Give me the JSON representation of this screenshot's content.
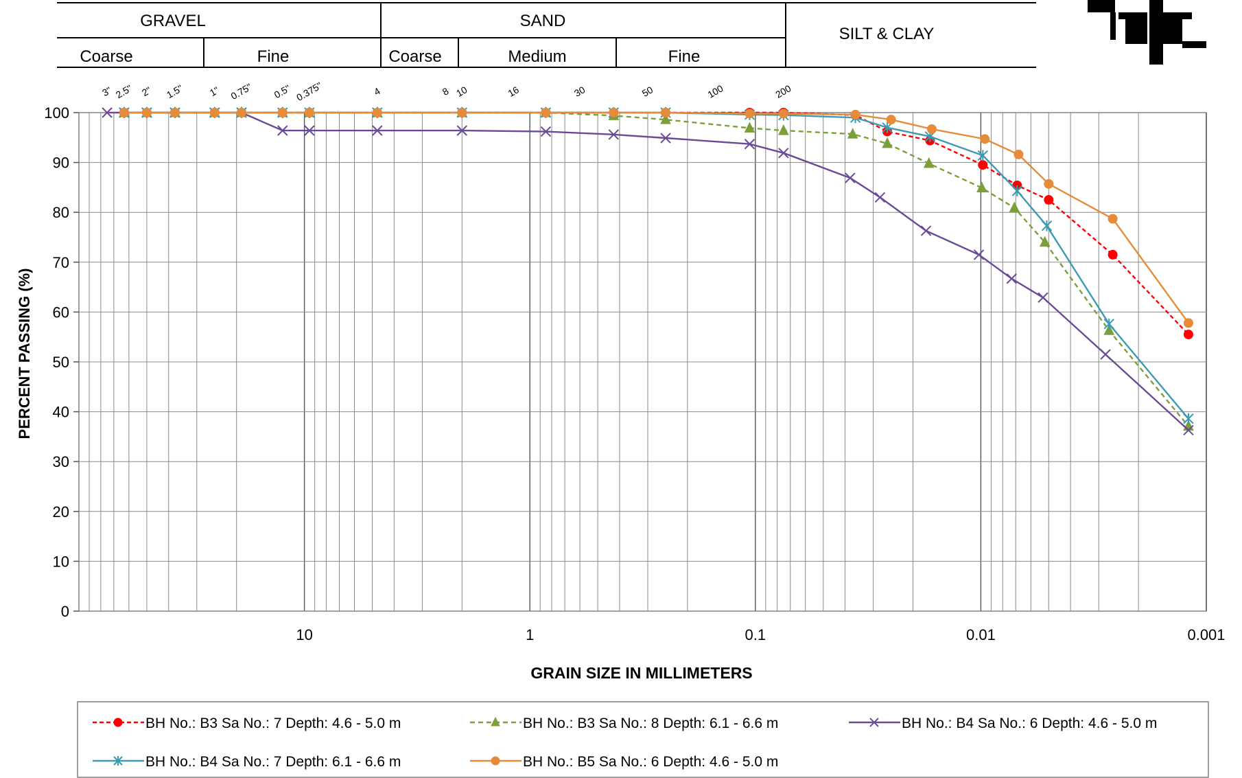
{
  "classification": {
    "gravel": "GRAVEL",
    "sand": "SAND",
    "silt_clay": "SILT & CLAY",
    "coarse_gravel": "Coarse",
    "fine_gravel": "Fine",
    "coarse_sand": "Coarse",
    "medium_sand": "Medium",
    "fine_sand": "Fine"
  },
  "sieves": [
    {
      "label": "3\"",
      "size": 75
    },
    {
      "label": "2.5\"",
      "size": 63
    },
    {
      "label": "2\"",
      "size": 50
    },
    {
      "label": "1.5\"",
      "size": 37.5
    },
    {
      "label": "1\"",
      "size": 25
    },
    {
      "label": "0.75\"",
      "size": 19
    },
    {
      "label": "0.5\"",
      "size": 12.5
    },
    {
      "label": "0.375\"",
      "size": 9.5
    },
    {
      "label": "4",
      "size": 4.75
    },
    {
      "label": "8",
      "size": 2.36
    },
    {
      "label": "10",
      "size": 2.0
    },
    {
      "label": "16",
      "size": 1.18
    },
    {
      "label": "30",
      "size": 0.6
    },
    {
      "label": "50",
      "size": 0.3
    },
    {
      "label": "100",
      "size": 0.15
    },
    {
      "label": "200",
      "size": 0.075
    }
  ],
  "chart_data": {
    "type": "line",
    "xlabel": "GRAIN SIZE IN MILLIMETERS",
    "ylabel": "PERCENT PASSING (%)",
    "x_scale": "log-reversed",
    "xlim": [
      100,
      0.001
    ],
    "ylim": [
      0,
      100
    ],
    "x_ticks": [
      {
        "v": 10,
        "label": "10"
      },
      {
        "v": 1,
        "label": "1"
      },
      {
        "v": 0.1,
        "label": "0.1"
      },
      {
        "v": 0.01,
        "label": "0.01"
      },
      {
        "v": 0.001,
        "label": "0.001"
      }
    ],
    "y_ticks": [
      0,
      10,
      20,
      30,
      40,
      50,
      60,
      70,
      80,
      90,
      100
    ],
    "grid": true,
    "legend_position": "bottom",
    "series": [
      {
        "name": "BH No.: B3 Sa No.: 7 Depth: 4.6 - 5.0 m",
        "color": "#ff0000",
        "dash": "6,4",
        "marker": "circle",
        "points": [
          [
            63,
            100
          ],
          [
            50,
            100
          ],
          [
            37.5,
            100
          ],
          [
            25,
            100
          ],
          [
            19,
            100
          ],
          [
            12.5,
            100
          ],
          [
            9.5,
            100
          ],
          [
            4.75,
            100
          ],
          [
            2.0,
            100
          ],
          [
            0.85,
            100
          ],
          [
            0.425,
            100
          ],
          [
            0.25,
            100
          ],
          [
            0.106,
            100
          ],
          [
            0.075,
            100
          ],
          [
            0.036,
            99.5
          ],
          [
            0.026,
            96.2
          ],
          [
            0.0168,
            94.4
          ],
          [
            0.0098,
            89.5
          ],
          [
            0.0069,
            85.4
          ],
          [
            0.005,
            82.5
          ],
          [
            0.0026,
            71.5
          ],
          [
            0.0012,
            55.5
          ]
        ]
      },
      {
        "name": "BH No.: B3 Sa No.: 8 Depth: 6.1 - 6.6 m",
        "color": "#7ba03b",
        "dash": "7,5",
        "marker": "triangle",
        "points": [
          [
            63,
            100
          ],
          [
            50,
            100
          ],
          [
            37.5,
            100
          ],
          [
            25,
            100
          ],
          [
            19,
            100
          ],
          [
            12.5,
            100
          ],
          [
            9.5,
            100
          ],
          [
            4.75,
            100
          ],
          [
            2.0,
            100
          ],
          [
            0.85,
            100
          ],
          [
            0.425,
            99.4
          ],
          [
            0.25,
            98.6
          ],
          [
            0.106,
            96.9
          ],
          [
            0.075,
            96.4
          ],
          [
            0.037,
            95.7
          ],
          [
            0.026,
            93.8
          ],
          [
            0.017,
            89.8
          ],
          [
            0.0099,
            84.9
          ],
          [
            0.0071,
            80.9
          ],
          [
            0.0052,
            74.0
          ],
          [
            0.0027,
            56.3
          ],
          [
            0.0012,
            37.1
          ]
        ]
      },
      {
        "name": "BH No.: B4 Sa No.: 6 Depth: 4.6 - 5.0 m",
        "color": "#6a4a96",
        "dash": "",
        "marker": "x",
        "points": [
          [
            75,
            100
          ],
          [
            63,
            100
          ],
          [
            50,
            100
          ],
          [
            37.5,
            100
          ],
          [
            25,
            100
          ],
          [
            19,
            100
          ],
          [
            12.5,
            96.4
          ],
          [
            9.5,
            96.4
          ],
          [
            4.75,
            96.4
          ],
          [
            2.0,
            96.4
          ],
          [
            0.85,
            96.2
          ],
          [
            0.425,
            95.6
          ],
          [
            0.25,
            94.9
          ],
          [
            0.106,
            93.7
          ],
          [
            0.075,
            91.9
          ],
          [
            0.038,
            86.9
          ],
          [
            0.028,
            83.0
          ],
          [
            0.0175,
            76.3
          ],
          [
            0.0102,
            71.5
          ],
          [
            0.0073,
            66.7
          ],
          [
            0.0053,
            62.9
          ],
          [
            0.0028,
            51.5
          ],
          [
            0.0012,
            36.3
          ]
        ]
      },
      {
        "name": "BH No.: B4 Sa No.: 7 Depth: 6.1 - 6.6 m",
        "color": "#3c9ab1",
        "dash": "",
        "marker": "star",
        "points": [
          [
            63,
            100
          ],
          [
            50,
            100
          ],
          [
            37.5,
            100
          ],
          [
            25,
            100
          ],
          [
            19,
            100
          ],
          [
            12.5,
            100
          ],
          [
            9.5,
            100
          ],
          [
            4.75,
            100
          ],
          [
            2.0,
            100
          ],
          [
            0.85,
            100
          ],
          [
            0.425,
            100
          ],
          [
            0.25,
            100
          ],
          [
            0.106,
            99.6
          ],
          [
            0.075,
            99.5
          ],
          [
            0.036,
            99.0
          ],
          [
            0.026,
            97.0
          ],
          [
            0.0168,
            95.2
          ],
          [
            0.0098,
            91.4
          ],
          [
            0.0069,
            84.3
          ],
          [
            0.0051,
            77.3
          ],
          [
            0.0027,
            57.6
          ],
          [
            0.0012,
            38.6
          ]
        ]
      },
      {
        "name": "BH No.: B5 Sa No.: 6 Depth: 4.6 - 5.0 m",
        "color": "#e58b3a",
        "dash": "",
        "marker": "circle",
        "points": [
          [
            63,
            100
          ],
          [
            50,
            100
          ],
          [
            37.5,
            100
          ],
          [
            25,
            100
          ],
          [
            19,
            100
          ],
          [
            12.5,
            100
          ],
          [
            9.5,
            100
          ],
          [
            4.75,
            100
          ],
          [
            2.0,
            100
          ],
          [
            0.85,
            100
          ],
          [
            0.425,
            100
          ],
          [
            0.25,
            100
          ],
          [
            0.106,
            99.8
          ],
          [
            0.075,
            99.8
          ],
          [
            0.036,
            99.6
          ],
          [
            0.025,
            98.6
          ],
          [
            0.0165,
            96.7
          ],
          [
            0.0096,
            94.7
          ],
          [
            0.0068,
            91.6
          ],
          [
            0.005,
            85.7
          ],
          [
            0.0026,
            78.7
          ],
          [
            0.0012,
            57.8
          ]
        ]
      }
    ]
  }
}
